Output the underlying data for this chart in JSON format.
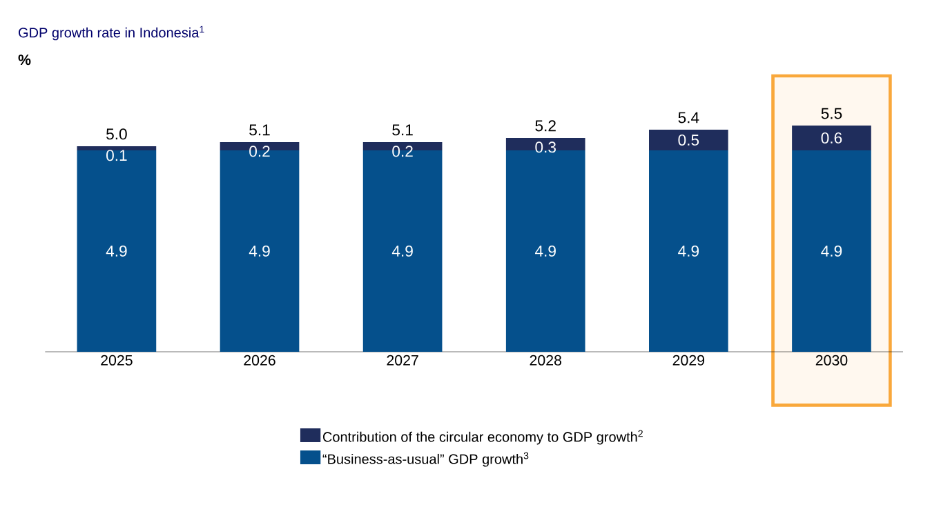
{
  "chart_data": {
    "type": "bar",
    "stacked": true,
    "title": "GDP growth rate in Indonesia$^{1}$",
    "ylabel": "%",
    "categories": [
      "2025",
      "2026",
      "2027",
      "2028",
      "2029",
      "2030"
    ],
    "series": [
      {
        "name": "“Business-as-usual” GDP growth$^{3}$",
        "color": "#05508c",
        "values": [
          4.9,
          4.9,
          4.9,
          4.9,
          4.9,
          4.9
        ]
      },
      {
        "name": "Contribution of the circular economy to GDP growth$^{2}$",
        "color": "#1f2d5c",
        "values": [
          0.1,
          0.2,
          0.2,
          0.3,
          0.5,
          0.6
        ]
      }
    ],
    "totals": [
      "5.0",
      "5.1",
      "5.1",
      "5.2",
      "5.4",
      "5.5"
    ],
    "data_labels": true,
    "tick_labels": "x",
    "grid": false,
    "legend": "bottom",
    "bands": [
      {
        "axis": "x",
        "from": "2030",
        "to": "2030",
        "color": "#f9a83b"
      }
    ]
  }
}
